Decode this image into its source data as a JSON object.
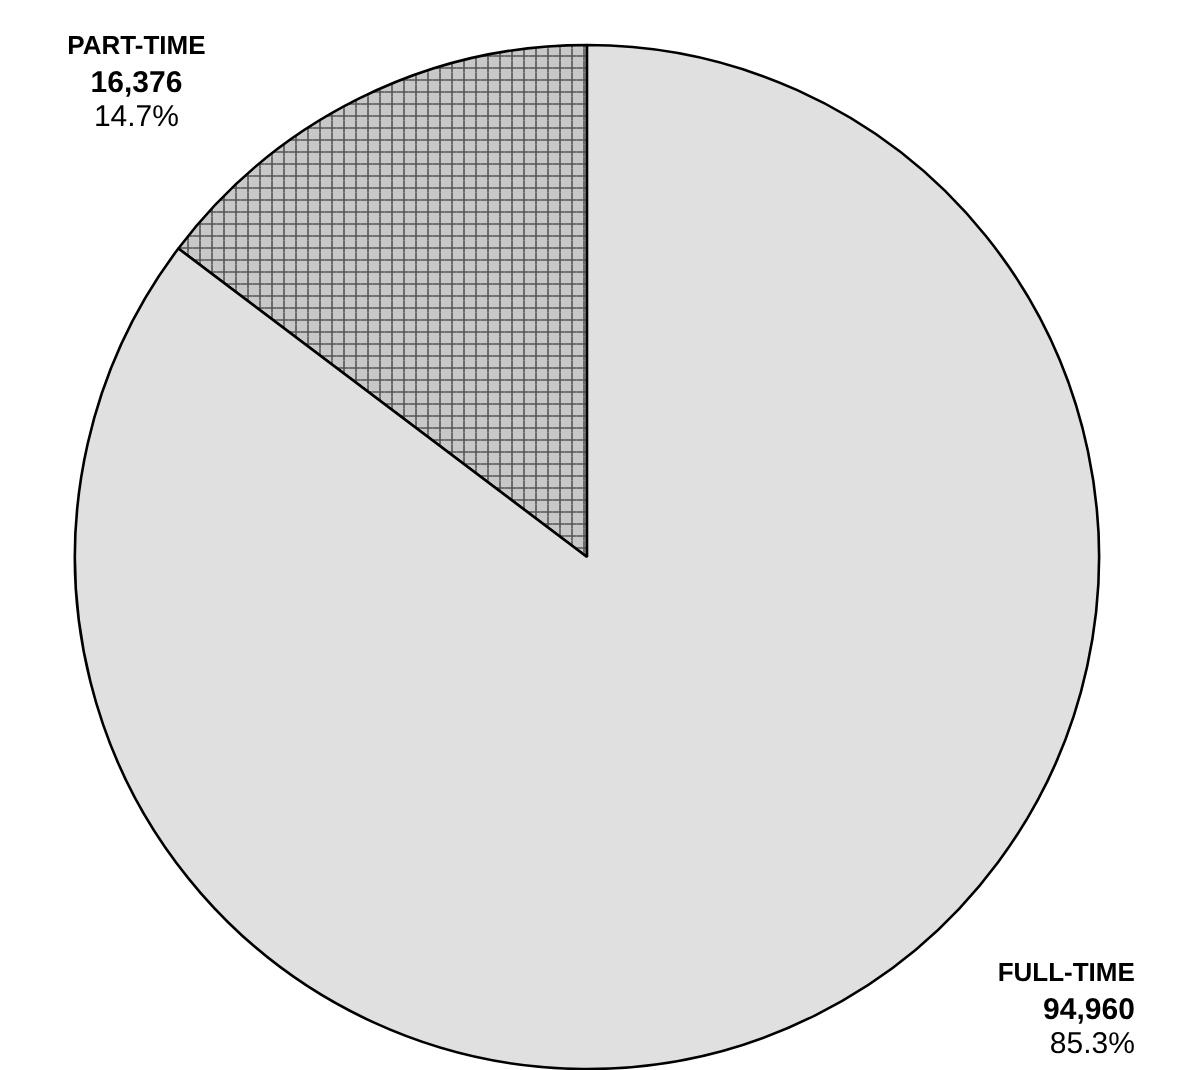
{
  "chart_data": {
    "type": "pie",
    "categories": [
      "PART-TIME",
      "FULL-TIME"
    ],
    "values": [
      16376,
      94960
    ],
    "colors": [
      "#c8c8c8",
      "#e0e0e0"
    ],
    "value_labels": [
      "16,376",
      "94,960"
    ],
    "annotations": [
      "14.7%",
      "85.3%"
    ]
  }
}
